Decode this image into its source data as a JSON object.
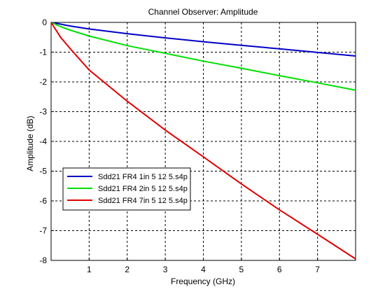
{
  "chart_data": {
    "type": "line",
    "title": "Channel Observer: Amplitude",
    "xlabel": "Frequency (GHz)",
    "ylabel": "Amplitude (dB)",
    "xlim": [
      0,
      8
    ],
    "ylim": [
      -8,
      0
    ],
    "x_ticks": [
      1,
      2,
      3,
      4,
      5,
      6,
      7
    ],
    "y_ticks": [
      0,
      -1,
      -2,
      -3,
      -4,
      -5,
      -6,
      -7,
      -8
    ],
    "grid": true,
    "grid_style": "dashed",
    "legend_position": "lower-left",
    "series": [
      {
        "name": "Sdd21 FR4 1in 5 12 5.s4p",
        "color": "#0000c8",
        "x": [
          0,
          0.25,
          0.5,
          1,
          2,
          3,
          4,
          5,
          6,
          7,
          8
        ],
        "y": [
          0,
          -0.06,
          -0.12,
          -0.22,
          -0.38,
          -0.52,
          -0.65,
          -0.77,
          -0.89,
          -1.01,
          -1.13
        ]
      },
      {
        "name": "Sdd21 FR4 2in 5 12 5.s4p",
        "color": "#00e000",
        "x": [
          0,
          0.25,
          0.5,
          1,
          2,
          3,
          4,
          5,
          6,
          7,
          8
        ],
        "y": [
          0,
          -0.14,
          -0.26,
          -0.46,
          -0.78,
          -1.04,
          -1.3,
          -1.54,
          -1.79,
          -2.03,
          -2.28
        ]
      },
      {
        "name": "Sdd21 FR4 7in 5 12 5.s4p",
        "color": "#e00000",
        "x": [
          0,
          0.25,
          0.5,
          1,
          2,
          3,
          4,
          5,
          6,
          7,
          8
        ],
        "y": [
          0,
          -0.5,
          -0.88,
          -1.6,
          -2.65,
          -3.62,
          -4.52,
          -5.43,
          -6.3,
          -7.12,
          -7.95
        ]
      }
    ]
  }
}
